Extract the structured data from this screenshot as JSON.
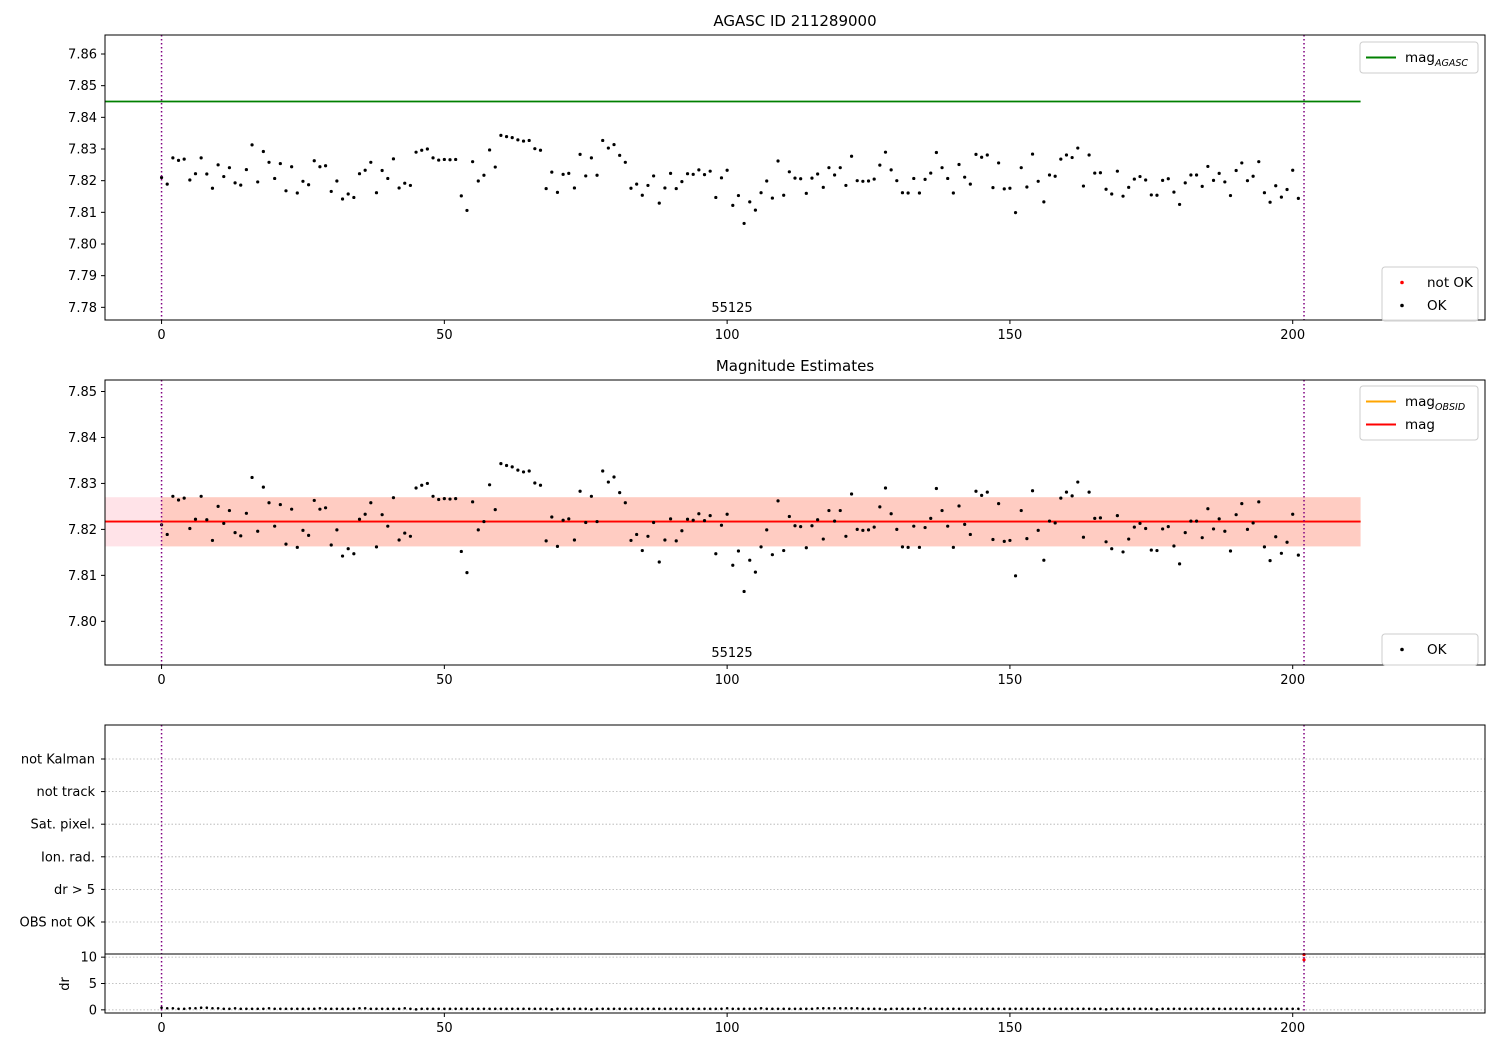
{
  "chart_data": [
    {
      "type": "scatter",
      "title": "AGASC ID 211289000",
      "xlim": [
        -10,
        234
      ],
      "ylim": [
        7.776,
        7.866
      ],
      "xticks": [
        0,
        50,
        100,
        150,
        200
      ],
      "yticks": [
        7.78,
        7.79,
        7.8,
        7.81,
        7.82,
        7.83,
        7.84,
        7.85,
        7.86
      ],
      "ytick_labels": [
        "7.78",
        "7.79",
        "7.80",
        "7.81",
        "7.82",
        "7.83",
        "7.84",
        "7.85",
        "7.86"
      ],
      "annotation": "55125",
      "vlines": [
        0,
        202
      ],
      "hlines": [
        {
          "name": "mag_AGASC",
          "y": 7.845,
          "x0": -10,
          "x1": 212,
          "color": "#008000"
        }
      ],
      "legends": [
        {
          "position": "upper-right",
          "entries": [
            {
              "label": "mag",
              "sub": "AGASC",
              "kind": "line",
              "color": "#008000"
            }
          ]
        },
        {
          "position": "lower-right",
          "entries": [
            {
              "label": "not OK",
              "kind": "point",
              "color": "#ff0000"
            },
            {
              "label": "OK",
              "kind": "point",
              "color": "#000000"
            }
          ]
        }
      ]
    },
    {
      "type": "scatter",
      "title": "Magnitude Estimates",
      "xlim": [
        -10,
        234
      ],
      "ylim": [
        7.7905,
        7.8525
      ],
      "xticks": [
        0,
        50,
        100,
        150,
        200
      ],
      "yticks": [
        7.8,
        7.81,
        7.82,
        7.83,
        7.84,
        7.85
      ],
      "ytick_labels": [
        "7.80",
        "7.81",
        "7.82",
        "7.83",
        "7.84",
        "7.85"
      ],
      "annotation": "55125",
      "vlines": [
        0,
        202
      ],
      "hlines": [
        {
          "name": "mag_OBSID",
          "y": 7.8217,
          "x0": -10,
          "x1": 212,
          "color": "#ffa500"
        },
        {
          "name": "mag",
          "y": 7.8217,
          "x0": -10,
          "x1": 212,
          "color": "#ff0000"
        }
      ],
      "bands": [
        {
          "y0": 7.8163,
          "y1": 7.827,
          "x0": -10,
          "x1": 212,
          "color": "#ffc0cb",
          "opacity": 0.45
        },
        {
          "y0": 7.8163,
          "y1": 7.827,
          "x0": 0,
          "x1": 212,
          "color": "#ffa07a",
          "opacity": 0.35
        }
      ],
      "legends": [
        {
          "position": "upper-right",
          "entries": [
            {
              "label": "mag",
              "sub": "OBSID",
              "kind": "line",
              "color": "#ffa500"
            },
            {
              "label": "mag",
              "kind": "line",
              "color": "#ff0000"
            }
          ]
        },
        {
          "position": "lower-right",
          "entries": [
            {
              "label": "OK",
              "kind": "point",
              "color": "#000000"
            }
          ]
        }
      ]
    },
    {
      "type": "scatter",
      "title": "",
      "xlim": [
        -10,
        234
      ],
      "xticks": [
        0,
        50,
        100,
        150,
        200
      ],
      "flag_labels": [
        "not Kalman",
        "not track",
        "Sat. pixel.",
        "Ion. rad.",
        "dr > 5",
        "OBS not OK"
      ],
      "ylabel": "dr",
      "dr_ylim": [
        -0.6,
        10.6
      ],
      "dr_yticks": [
        0,
        5,
        10
      ],
      "vlines": [
        0,
        202
      ],
      "red_markers": [
        {
          "x": 202,
          "y": 9.5
        },
        {
          "x": 202,
          "y": 10.5
        }
      ]
    }
  ],
  "series_values": [
    7.821,
    7.8189,
    7.8272,
    7.8264,
    7.8268,
    7.8202,
    7.8222,
    7.8272,
    7.8221,
    7.8176,
    7.825,
    7.8213,
    7.8241,
    7.8193,
    7.8186,
    7.8235,
    7.8313,
    7.8196,
    7.8292,
    7.8258,
    7.8207,
    7.8254,
    7.8168,
    7.8244,
    7.8161,
    7.8198,
    7.8187,
    7.8263,
    7.8244,
    7.8247,
    7.8166,
    7.8199,
    7.8142,
    7.8158,
    7.8147,
    7.8222,
    7.8233,
    7.8258,
    7.8162,
    7.8232,
    7.8207,
    7.8269,
    7.8177,
    7.8192,
    7.8185,
    7.829,
    7.8296,
    7.83,
    7.8272,
    7.8265,
    7.8267,
    7.8266,
    7.8267,
    7.8152,
    7.8106,
    7.826,
    7.8199,
    7.8217,
    7.8297,
    7.8243,
    7.8343,
    7.8339,
    7.8336,
    7.8329,
    7.8325,
    7.8327,
    7.8301,
    7.8296,
    7.8175,
    7.8227,
    7.8163,
    7.822,
    7.8223,
    7.8177,
    7.8283,
    7.8215,
    7.8272,
    7.8217,
    7.8327,
    7.8303,
    7.8314,
    7.828,
    7.8258,
    7.8176,
    7.8189,
    7.8154,
    7.8185,
    7.8215,
    7.8129,
    7.8177,
    7.8223,
    7.8175,
    7.8197,
    7.8222,
    7.822,
    7.8234,
    7.8219,
    7.823,
    7.8147,
    7.8209,
    7.8233,
    7.8122,
    7.8153,
    7.8065,
    7.8133,
    7.8107,
    7.8162,
    7.8199,
    7.8145,
    7.8262,
    7.8154,
    7.8228,
    7.8208,
    7.8206,
    7.816,
    7.8208,
    7.8221,
    7.8179,
    7.8241,
    7.8218,
    7.8241,
    7.8185,
    7.8277,
    7.82,
    7.8198,
    7.8199,
    7.8205,
    7.8249,
    7.829,
    7.8234,
    7.82,
    7.8162,
    7.8161,
    7.8207,
    7.8161,
    7.8204,
    7.8224,
    7.8289,
    7.8241,
    7.8207,
    7.8161,
    7.8251,
    7.8211,
    7.8189,
    7.8283,
    7.8274,
    7.8281,
    7.8178,
    7.8256,
    7.8174,
    7.8176,
    7.8099,
    7.8241,
    7.818,
    7.8284,
    7.8198,
    7.8133,
    7.8218,
    7.8214,
    7.8268,
    7.8281,
    7.8273,
    7.8303,
    7.8183,
    7.8281,
    7.8224,
    7.8225,
    7.8173,
    7.8158,
    7.823,
    7.8151,
    7.8179,
    7.8205,
    7.8213,
    7.8202,
    7.8155,
    7.8154,
    7.8201,
    7.8206,
    7.8164,
    7.8125,
    7.8193,
    7.8218,
    7.8218,
    7.8182,
    7.8245,
    7.8201,
    7.8223,
    7.8196,
    7.8153,
    7.8232,
    7.8256,
    7.82,
    7.8214,
    7.826,
    7.8162,
    7.8132,
    7.8184,
    7.8148,
    7.8172,
    7.8233,
    7.8144
  ],
  "dr_values": [
    0.4,
    0.3,
    0.3,
    0.2,
    0.2,
    0.3,
    0.3,
    0.4,
    0.4,
    0.3,
    0.3,
    0.2,
    0.2,
    0.3,
    0.2,
    0.2,
    0.2,
    0.2,
    0.2,
    0.3,
    0.2,
    0.2,
    0.2,
    0.2,
    0.2,
    0.2,
    0.2,
    0.2,
    0.3,
    0.2,
    0.2,
    0.2,
    0.2,
    0.2,
    0.2,
    0.3,
    0.3,
    0.2,
    0.2,
    0.2,
    0.2,
    0.2,
    0.2,
    0.3,
    0.2,
    0.1,
    0.2,
    0.2,
    0.2,
    0.2,
    0.2,
    0.2,
    0.2,
    0.2,
    0.2,
    0.2,
    0.2,
    0.2,
    0.2,
    0.2,
    0.2,
    0.2,
    0.2,
    0.2,
    0.2,
    0.2,
    0.2,
    0.2,
    0.2,
    0.1,
    0.2,
    0.2,
    0.2,
    0.2,
    0.2,
    0.2,
    0.1,
    0.2,
    0.2,
    0.2,
    0.2,
    0.2,
    0.2,
    0.2,
    0.2,
    0.2,
    0.2,
    0.2,
    0.2,
    0.2,
    0.2,
    0.2,
    0.2,
    0.2,
    0.2,
    0.2,
    0.2,
    0.2,
    0.2,
    0.2,
    0.3,
    0.2,
    0.2,
    0.2,
    0.2,
    0.2,
    0.3,
    0.2,
    0.2,
    0.2,
    0.2,
    0.2,
    0.2,
    0.2,
    0.2,
    0.2,
    0.3,
    0.3,
    0.3,
    0.3,
    0.3,
    0.3,
    0.3,
    0.3,
    0.2,
    0.2,
    0.2,
    0.2,
    0.1,
    0.2,
    0.2,
    0.2,
    0.2,
    0.2,
    0.2,
    0.3,
    0.2,
    0.2,
    0.2,
    0.2,
    0.2,
    0.2,
    0.2,
    0.2,
    0.2,
    0.2,
    0.2,
    0.2,
    0.2,
    0.2,
    0.2,
    0.2,
    0.2,
    0.2,
    0.2,
    0.2,
    0.2,
    0.2,
    0.2,
    0.2,
    0.2,
    0.2,
    0.2,
    0.2,
    0.2,
    0.2,
    0.2,
    0.1,
    0.2,
    0.2,
    0.2,
    0.2,
    0.2,
    0.2,
    0.2,
    0.2,
    0.1,
    0.2,
    0.2,
    0.2,
    0.2,
    0.2,
    0.2,
    0.2,
    0.2,
    0.2,
    0.2,
    0.2,
    0.2,
    0.2,
    0.2,
    0.2,
    0.2,
    0.2,
    0.2,
    0.2,
    0.2,
    0.2,
    0.2,
    0.2,
    0.2,
    0.2
  ],
  "colors": {
    "point_ok": "#000000",
    "point_not_ok": "#ff0000",
    "vline": "#800080",
    "agasc_line": "#008000",
    "mag_line": "#ff0000",
    "obsid_line": "#ffa500",
    "grid": "#b0b0b0"
  }
}
